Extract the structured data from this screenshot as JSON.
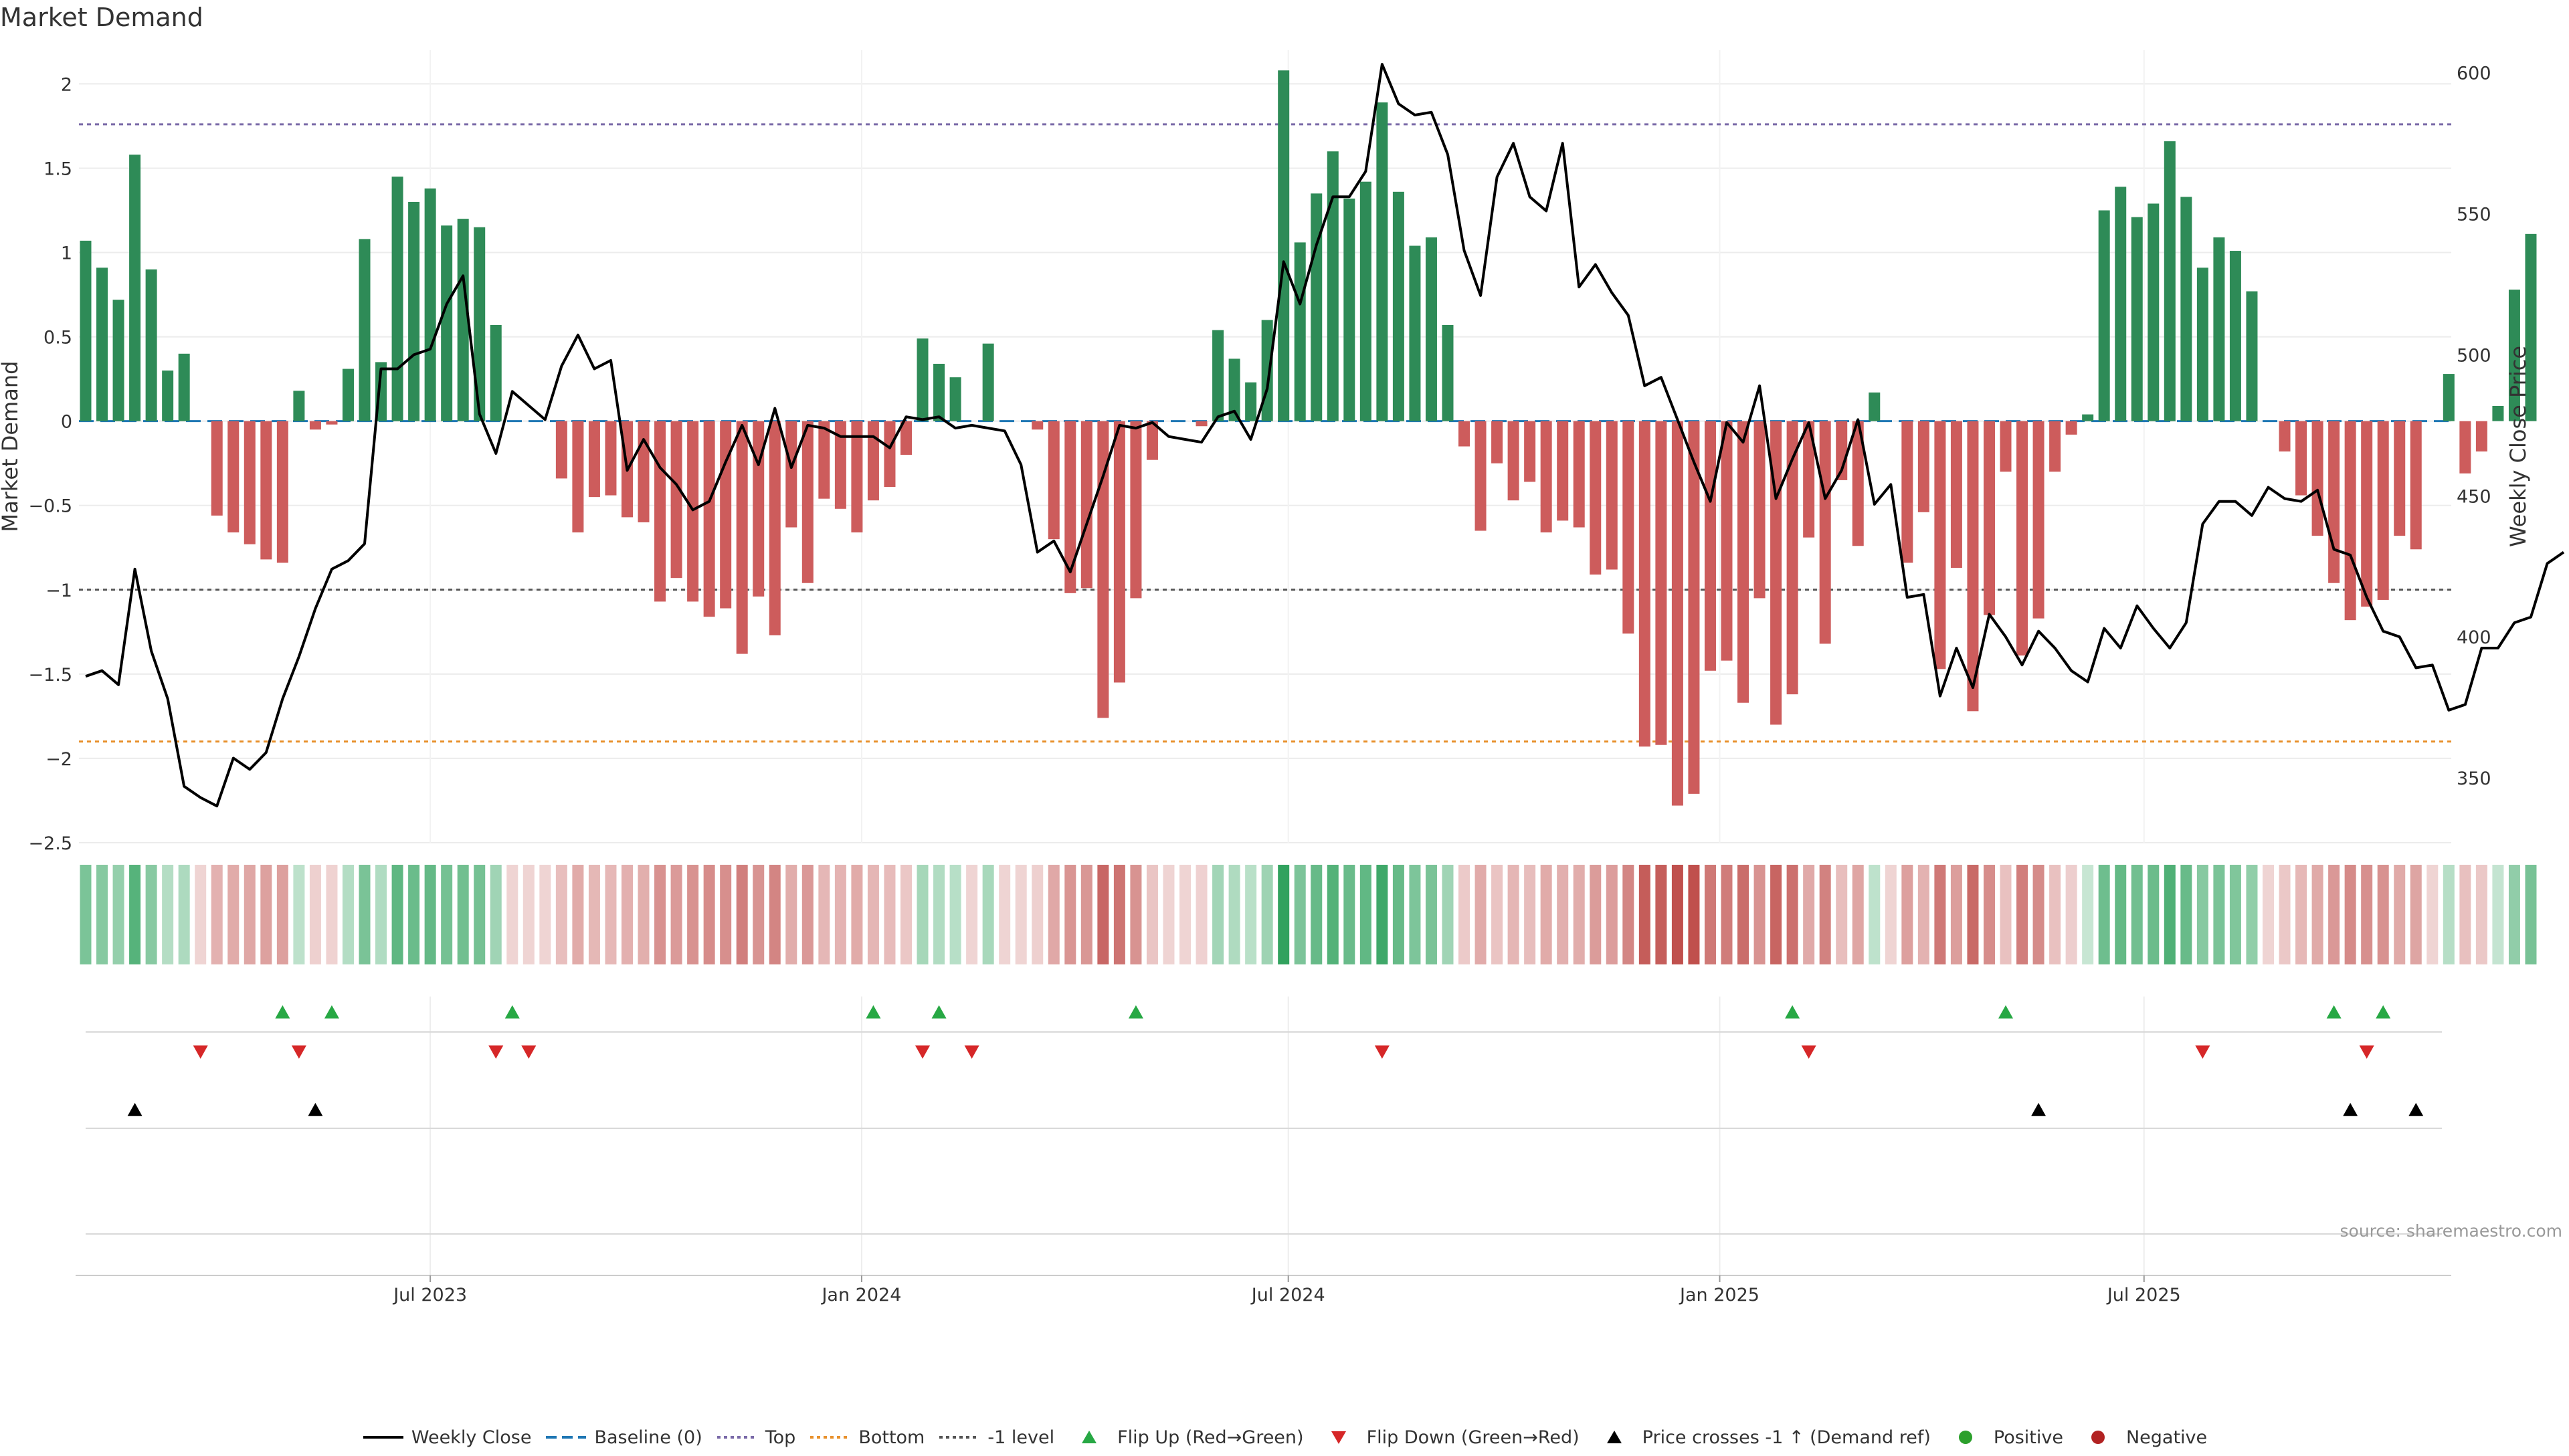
{
  "title": "Market Demand",
  "source": "source: sharemaestro.com",
  "colors": {
    "positive": "#2e8b57",
    "negative": "#cd5c5c",
    "price_line": "#000000",
    "baseline": "#1f77b4",
    "top_line": "#7a6aa8",
    "bottom_line": "#e8912d",
    "minus_one_line": "#555555",
    "flip_up": "#27a844",
    "flip_down": "#d62728",
    "cross_marker": "#000000",
    "positive_dot": "#2ca02c",
    "negative_dot": "#b22222"
  },
  "legend": [
    {
      "label": "Weekly Close",
      "symbol": "solid-line-icon",
      "color": "#000000"
    },
    {
      "label": "Baseline (0)",
      "symbol": "dashed-line-icon",
      "color": "#1f77b4"
    },
    {
      "label": "Top",
      "symbol": "dotted-line-icon",
      "color": "#7a6aa8"
    },
    {
      "label": "Bottom",
      "symbol": "dotted-line-icon",
      "color": "#e8912d"
    },
    {
      "label": "-1 level",
      "symbol": "dotted-line-icon",
      "color": "#555555"
    },
    {
      "label": "Flip Up (Red→Green)",
      "symbol": "triangle-up-icon",
      "color": "#27a844"
    },
    {
      "label": "Flip Down (Green→Red)",
      "symbol": "triangle-down-icon",
      "color": "#d62728"
    },
    {
      "label": "Price crosses -1 ↑ (Demand ref)",
      "symbol": "triangle-up-icon",
      "color": "#000000"
    },
    {
      "label": "Positive",
      "symbol": "circle-icon",
      "color": "#2ca02c"
    },
    {
      "label": "Negative",
      "symbol": "circle-icon",
      "color": "#b22222"
    }
  ],
  "chart_data": {
    "type": "bar",
    "start_date": "2023-02-04",
    "interval_days": 7,
    "x_tick_labels": [
      {
        "date": "2023-07-01",
        "label": "Jul 2023"
      },
      {
        "date": "2024-01-01",
        "label": "Jan 2024"
      },
      {
        "date": "2024-07-01",
        "label": "Jul 2024"
      },
      {
        "date": "2025-01-01",
        "label": "Jan 2025"
      },
      {
        "date": "2025-07-01",
        "label": "Jul 2025"
      }
    ],
    "left_axis": {
      "label": "Market Demand",
      "ylim": [
        -2.5,
        2.2
      ],
      "ticks": [
        2,
        1.5,
        1,
        0.5,
        0,
        -0.5,
        -1,
        -1.5,
        -2,
        -2.5
      ],
      "tick_labels": [
        "2",
        "1.5",
        "1",
        "0.5",
        "0",
        "−0.5",
        "−1",
        "−1.5",
        "−2",
        "−2.5"
      ]
    },
    "right_axis": {
      "label": "Weekly Close Price",
      "ylim": [
        327,
        608
      ],
      "ticks": [
        600,
        550,
        500,
        450,
        400,
        350
      ],
      "tick_labels": [
        "600",
        "550",
        "500",
        "450",
        "400",
        "350"
      ]
    },
    "reference_lines": [
      {
        "name": "Baseline (0)",
        "value": 0
      },
      {
        "name": "Top",
        "value": 1.76
      },
      {
        "name": "Bottom",
        "value": -1.9
      },
      {
        "name": "-1 level",
        "value": -1
      }
    ],
    "series": [
      {
        "name": "Market Demand",
        "values": [
          1.07,
          0.91,
          0.72,
          1.58,
          0.9,
          0.3,
          0.4,
          0,
          -0.56,
          -0.66,
          -0.73,
          -0.82,
          -0.84,
          0.18,
          -0.05,
          -0.02,
          0.31,
          1.08,
          0.35,
          1.45,
          1.3,
          1.38,
          1.16,
          1.2,
          1.15,
          0.57,
          0,
          0,
          0,
          -0.34,
          -0.66,
          -0.45,
          -0.44,
          -0.57,
          -0.6,
          -1.07,
          -0.93,
          -1.07,
          -1.16,
          -1.11,
          -1.38,
          -1.04,
          -1.27,
          -0.63,
          -0.96,
          -0.46,
          -0.52,
          -0.66,
          -0.47,
          -0.39,
          -0.2,
          0.49,
          0.34,
          0.26,
          0,
          0.46,
          0,
          0,
          -0.05,
          -0.7,
          -1.02,
          -0.99,
          -1.76,
          -1.55,
          -1.05,
          -0.23,
          0,
          0,
          -0.03,
          0.54,
          0.37,
          0.23,
          0.6,
          2.08,
          1.06,
          1.35,
          1.6,
          1.32,
          1.42,
          1.89,
          1.36,
          1.04,
          1.09,
          0.57,
          -0.15,
          -0.65,
          -0.25,
          -0.47,
          -0.36,
          -0.66,
          -0.59,
          -0.63,
          -0.91,
          -0.88,
          -1.26,
          -1.93,
          -1.92,
          -2.28,
          -2.21,
          -1.48,
          -1.42,
          -1.67,
          -1.05,
          -1.8,
          -1.62,
          -0.69,
          -1.32,
          -0.35,
          -0.74,
          0.17,
          0,
          -0.84,
          -0.54,
          -1.47,
          -0.87,
          -1.72,
          -1.15,
          -0.3,
          -1.39,
          -1.17,
          -0.3,
          -0.08,
          0.04,
          1.25,
          1.39,
          1.21,
          1.29,
          1.66,
          1.33,
          0.91,
          1.09,
          1.01,
          0.77,
          0,
          -0.18,
          -0.44,
          -0.68,
          -0.96,
          -1.18,
          -1.1,
          -1.06,
          -0.68,
          -0.76,
          0,
          0.28,
          -0.31,
          -0.18,
          0.09,
          0.78,
          1.11
        ]
      },
      {
        "name": "Weekly Close",
        "values": [
          386,
          388,
          383,
          424,
          395,
          378,
          347,
          343,
          340,
          357,
          353,
          359,
          378,
          393,
          410,
          424,
          427,
          433,
          495,
          495,
          500,
          502,
          518,
          528,
          479,
          465,
          487,
          482,
          477,
          496,
          507,
          495,
          498,
          459,
          470,
          460,
          454,
          445,
          448,
          462,
          475,
          461,
          481,
          460,
          475,
          474,
          471,
          471,
          471,
          467,
          478,
          477,
          478,
          474,
          475,
          474,
          473,
          461,
          430,
          434,
          423,
          440,
          457,
          475,
          474,
          476,
          471,
          470,
          469,
          478,
          480,
          470,
          488,
          533,
          518,
          539,
          556,
          556,
          565,
          603,
          589,
          585,
          586,
          571,
          537,
          521,
          563,
          575,
          556,
          551,
          575,
          524,
          532,
          522,
          514,
          489,
          492,
          477,
          462,
          448,
          476,
          469,
          489,
          449,
          463,
          476,
          449,
          459,
          477,
          447,
          454,
          414,
          415,
          379,
          396,
          382,
          408,
          400,
          390,
          402,
          396,
          388,
          384,
          403,
          396,
          411,
          403,
          396,
          405,
          440,
          448,
          448,
          443,
          453,
          449,
          448,
          452,
          431,
          429,
          414,
          402,
          400,
          389,
          390,
          374,
          376,
          396,
          396,
          405,
          407,
          426,
          430
        ]
      }
    ],
    "flip_up_weeks": [
      12,
      15,
      26,
      48,
      52,
      64,
      104,
      117,
      137,
      140
    ],
    "flip_down_weeks": [
      7,
      13,
      25,
      27,
      51,
      54,
      79,
      105,
      129,
      139
    ],
    "price_cross_weeks": [
      3,
      14,
      119,
      138,
      142
    ]
  }
}
